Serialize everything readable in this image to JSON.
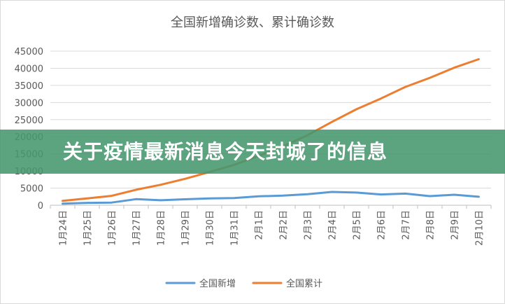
{
  "chart_data": {
    "type": "line",
    "title": "全国新增确诊数、累计确诊数",
    "categories": [
      "1月24日",
      "1月25日",
      "1月26日",
      "1月27日",
      "1月28日",
      "1月29日",
      "1月30日",
      "1月31日",
      "2月1日",
      "2月2日",
      "2月3日",
      "2月4日",
      "2月5日",
      "2月6日",
      "2月7日",
      "2月8日",
      "2月9日",
      "2月10日"
    ],
    "ylim": [
      0,
      45000
    ],
    "yticks": [
      0,
      5000,
      10000,
      15000,
      20000,
      25000,
      30000,
      35000,
      40000,
      45000
    ],
    "grid": true,
    "legend_position": "bottom",
    "series": [
      {
        "name": "全国新增",
        "color": "#5b9bd5",
        "values": [
          444,
          688,
          769,
          1771,
          1459,
          1737,
          1982,
          2102,
          2590,
          2829,
          3235,
          3887,
          3694,
          3143,
          3399,
          2656,
          3062,
          2478
        ]
      },
      {
        "name": "全国累计",
        "color": "#ed7d31",
        "values": [
          1287,
          1975,
          2744,
          4515,
          5974,
          7711,
          9692,
          11791,
          14380,
          17205,
          20438,
          24324,
          28018,
          31161,
          34546,
          37198,
          40171,
          42638
        ]
      }
    ]
  },
  "overlay": {
    "banner_text": "关于疫情最新消息今天封城了的信息",
    "banner_color": "#46966e"
  }
}
